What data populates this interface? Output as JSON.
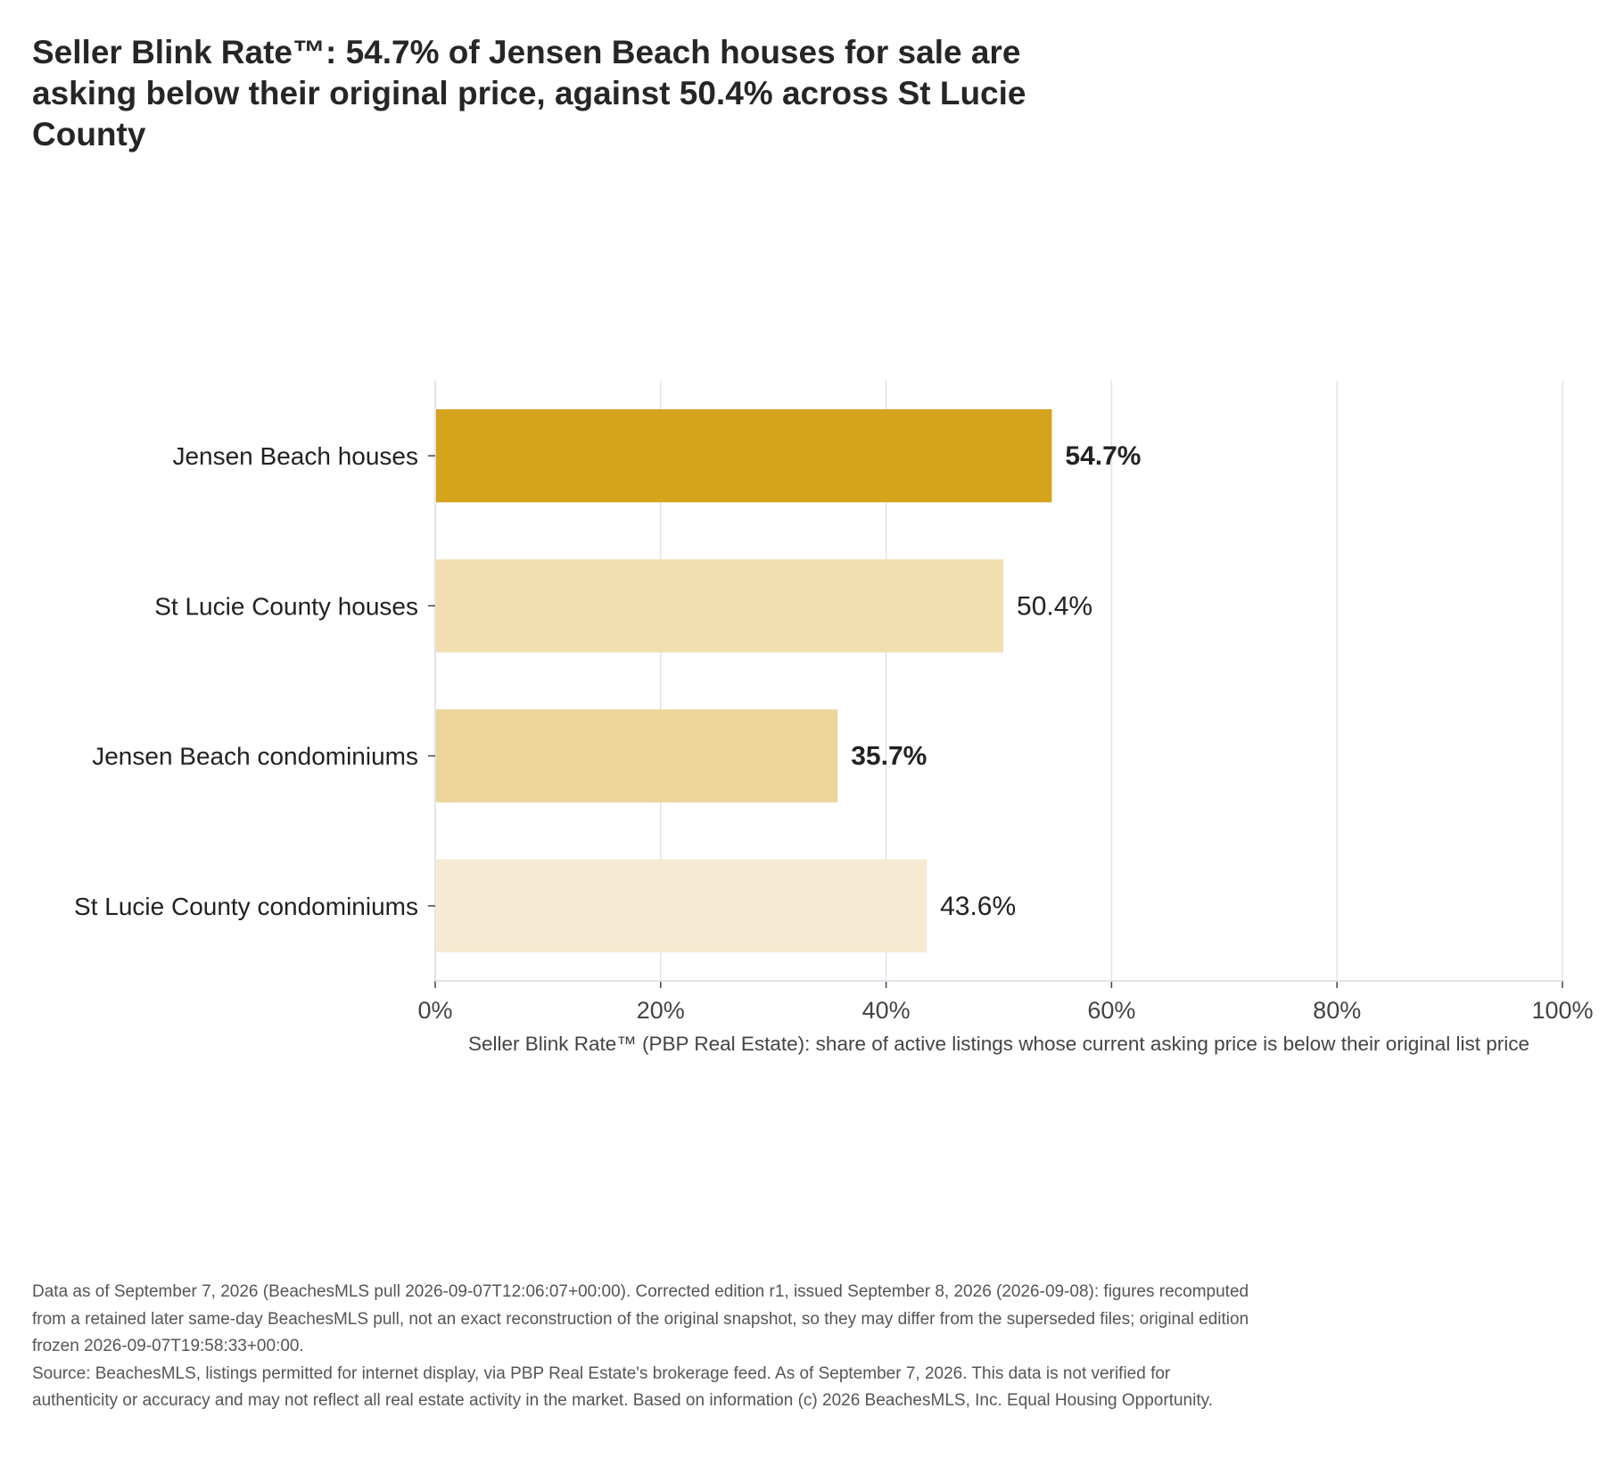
{
  "title": "Seller Blink Rate™: 54.7% of Jensen Beach houses for sale are asking below their original price, against 50.4% across St Lucie County",
  "chart_data": {
    "type": "bar",
    "orientation": "horizontal",
    "categories": [
      "Jensen Beach houses",
      "St Lucie County houses",
      "Jensen Beach condominiums",
      "St Lucie County condominiums"
    ],
    "values": [
      54.7,
      50.4,
      35.7,
      43.6
    ],
    "value_labels": [
      "54.7%",
      "50.4%",
      "35.7%",
      "43.6%"
    ],
    "bold_labels": [
      true,
      false,
      true,
      false
    ],
    "colors": [
      "#d6a31d",
      "#f2deb0",
      "#edd59a",
      "#f6ebd2"
    ],
    "xlim": [
      0,
      100
    ],
    "xticks": [
      0,
      20,
      40,
      60,
      80,
      100
    ],
    "xtick_labels": [
      "0%",
      "20%",
      "40%",
      "60%",
      "80%",
      "100%"
    ],
    "xlabel": "Seller Blink Rate™ (PBP Real Estate): share of active listings whose current asking price is below their original list price",
    "ylabel": "",
    "grid": true
  },
  "footer": {
    "note": "Data as of September 7, 2026 (BeachesMLS pull 2026-09-07T12:06:07+00:00). Corrected edition r1, issued September 8, 2026 (2026-09-08): figures recomputed from a retained later same-day BeachesMLS pull, not an exact reconstruction of the original snapshot, so they may differ from the superseded files; original edition frozen 2026-09-07T19:58:33+00:00.",
    "source": "Source: BeachesMLS, listings permitted for internet display, via PBP Real Estate's brokerage feed. As of September 7, 2026. This data is not verified for authenticity or accuracy and may not reflect all real estate activity in the market. Based on information (c) 2026 BeachesMLS, Inc. Equal Housing Opportunity."
  }
}
